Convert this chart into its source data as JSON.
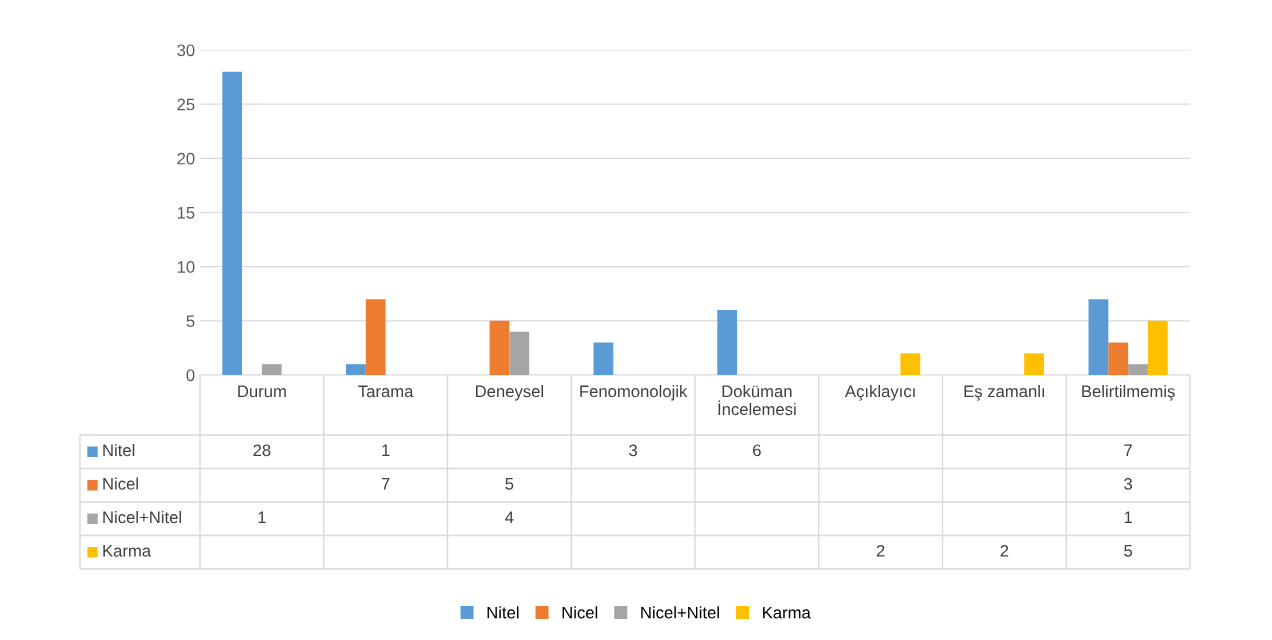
{
  "chart_data": {
    "type": "bar",
    "categories": [
      "Durum",
      "Tarama",
      "Deneysel",
      "Fenomonolojik",
      "Doküman İncelemesi",
      "Açıklayıcı",
      "Eş zamanlı",
      "Belirtilmemiş"
    ],
    "series": [
      {
        "name": "Nitel",
        "color": "#5b9bd5",
        "values": [
          28,
          1,
          null,
          3,
          6,
          null,
          null,
          7
        ]
      },
      {
        "name": "Nicel",
        "color": "#ed7d31",
        "values": [
          null,
          7,
          5,
          null,
          null,
          null,
          null,
          3
        ]
      },
      {
        "name": "Nicel+Nitel",
        "color": "#a5a5a5",
        "values": [
          1,
          null,
          4,
          null,
          null,
          null,
          null,
          1
        ]
      },
      {
        "name": "Karma",
        "color": "#ffc000",
        "values": [
          null,
          null,
          null,
          null,
          null,
          2,
          2,
          5
        ]
      }
    ],
    "ylim": [
      0,
      30
    ],
    "yticks": [
      0,
      5,
      10,
      15,
      20,
      25,
      30
    ],
    "grid": "y",
    "legend": "bottom",
    "data_labels": true
  }
}
